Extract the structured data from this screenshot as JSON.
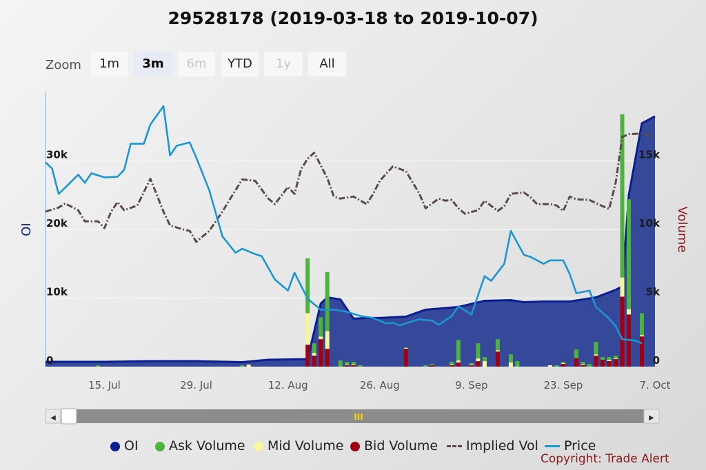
{
  "title": "29528178 (2019-03-18 to 2019-10-07)",
  "zoom": {
    "label": "Zoom",
    "buttons": [
      {
        "label": "1m",
        "state": "normal"
      },
      {
        "label": "3m",
        "state": "active"
      },
      {
        "label": "6m",
        "state": "disabled"
      },
      {
        "label": "YTD",
        "state": "normal"
      },
      {
        "label": "1y",
        "state": "disabled"
      },
      {
        "label": "All",
        "state": "normal"
      }
    ]
  },
  "navigator": {
    "handle_label": "III",
    "left_arrow": "◀",
    "right_arrow": "▶"
  },
  "legend": [
    {
      "label": "OI",
      "color": "#0a1f8f",
      "marker": "dot"
    },
    {
      "label": "Ask Volume",
      "color": "#4db33d",
      "marker": "dot"
    },
    {
      "label": "Mid Volume",
      "color": "#f6f69a",
      "marker": "dot"
    },
    {
      "label": "Bid Volume",
      "color": "#a00010",
      "marker": "dot"
    },
    {
      "label": "Implied Vol",
      "color": "#5a4a4e",
      "marker": "dash"
    },
    {
      "label": "Price",
      "color": "#1a96d2",
      "marker": "line"
    }
  ],
  "copyright": "Copyright: Trade Alert",
  "chart_data": {
    "type": "line",
    "x_range": [
      "2019-07-06",
      "2019-10-07"
    ],
    "x_ticks": [
      {
        "date": "2019-07-15",
        "label": "15. Jul"
      },
      {
        "date": "2019-07-29",
        "label": "29. Jul"
      },
      {
        "date": "2019-08-12",
        "label": "12. Aug"
      },
      {
        "date": "2019-08-26",
        "label": "26. Aug"
      },
      {
        "date": "2019-09-09",
        "label": "9. Sep"
      },
      {
        "date": "2019-09-23",
        "label": "23. Sep"
      },
      {
        "date": "2019-10-07",
        "label": "7. Oct"
      }
    ],
    "y_left": {
      "label": "OI",
      "min": 0,
      "max": 40000,
      "ticks": [
        {
          "v": 0,
          "label": "0"
        },
        {
          "v": 10000,
          "label": "10k"
        },
        {
          "v": 20000,
          "label": "20k"
        },
        {
          "v": 30000,
          "label": "30k"
        }
      ]
    },
    "y_right": {
      "label": "Volume",
      "min": 0,
      "max": 20000,
      "ticks": [
        {
          "v": 0,
          "label": "0"
        },
        {
          "v": 5000,
          "label": "5k"
        },
        {
          "v": 10000,
          "label": "10k"
        },
        {
          "v": 15000,
          "label": "15k"
        }
      ]
    },
    "grid": true,
    "legend_position": "bottom",
    "oi": [
      [
        "2019-07-06",
        700
      ],
      [
        "2019-07-15",
        700
      ],
      [
        "2019-07-22",
        800
      ],
      [
        "2019-07-29",
        800
      ],
      [
        "2019-08-05",
        650
      ],
      [
        "2019-08-09",
        1000
      ],
      [
        "2019-08-15",
        1100
      ],
      [
        "2019-08-17",
        9200
      ],
      [
        "2019-08-18",
        10100
      ],
      [
        "2019-08-20",
        9800
      ],
      [
        "2019-08-22",
        7000
      ],
      [
        "2019-08-24",
        7100
      ],
      [
        "2019-08-26",
        7100
      ],
      [
        "2019-08-30",
        7300
      ],
      [
        "2019-09-02",
        8300
      ],
      [
        "2019-09-07",
        8700
      ],
      [
        "2019-09-11",
        9600
      ],
      [
        "2019-09-15",
        9700
      ],
      [
        "2019-09-17",
        9400
      ],
      [
        "2019-09-20",
        9500
      ],
      [
        "2019-09-24",
        9500
      ],
      [
        "2019-09-28",
        10100
      ],
      [
        "2019-10-01",
        11200
      ],
      [
        "2019-10-02",
        11700
      ],
      [
        "2019-10-03",
        25000
      ],
      [
        "2019-10-05",
        35500
      ],
      [
        "2019-10-07",
        36500
      ]
    ],
    "price": [
      [
        "2019-07-06",
        29800
      ],
      [
        "2019-07-07",
        28900
      ],
      [
        "2019-07-08",
        25200
      ],
      [
        "2019-07-09",
        26100
      ],
      [
        "2019-07-11",
        28000
      ],
      [
        "2019-07-12",
        26800
      ],
      [
        "2019-07-13",
        28200
      ],
      [
        "2019-07-15",
        27600
      ],
      [
        "2019-07-17",
        27700
      ],
      [
        "2019-07-18",
        28700
      ],
      [
        "2019-07-19",
        32500
      ],
      [
        "2019-07-21",
        32500
      ],
      [
        "2019-07-22",
        35300
      ],
      [
        "2019-07-24",
        38000
      ],
      [
        "2019-07-25",
        30800
      ],
      [
        "2019-07-26",
        32200
      ],
      [
        "2019-07-28",
        32700
      ],
      [
        "2019-07-29",
        30500
      ],
      [
        "2019-07-31",
        25700
      ],
      [
        "2019-08-02",
        19000
      ],
      [
        "2019-08-04",
        16600
      ],
      [
        "2019-08-05",
        17200
      ],
      [
        "2019-08-07",
        16400
      ],
      [
        "2019-08-08",
        16100
      ],
      [
        "2019-08-10",
        12700
      ],
      [
        "2019-08-12",
        11100
      ],
      [
        "2019-08-13",
        13700
      ],
      [
        "2019-08-15",
        9900
      ],
      [
        "2019-08-17",
        8300
      ],
      [
        "2019-08-19",
        8300
      ],
      [
        "2019-08-21",
        8000
      ],
      [
        "2019-08-23",
        7400
      ],
      [
        "2019-08-25",
        7100
      ],
      [
        "2019-08-27",
        6300
      ],
      [
        "2019-08-28",
        6400
      ],
      [
        "2019-08-29",
        6000
      ],
      [
        "2019-08-31",
        6600
      ],
      [
        "2019-09-01",
        6900
      ],
      [
        "2019-09-03",
        6700
      ],
      [
        "2019-09-04",
        6100
      ],
      [
        "2019-09-06",
        7400
      ],
      [
        "2019-09-07",
        8800
      ],
      [
        "2019-09-09",
        7600
      ],
      [
        "2019-09-11",
        13200
      ],
      [
        "2019-09-12",
        12500
      ],
      [
        "2019-09-14",
        15000
      ],
      [
        "2019-09-15",
        19800
      ],
      [
        "2019-09-17",
        16300
      ],
      [
        "2019-09-18",
        16000
      ],
      [
        "2019-09-20",
        15000
      ],
      [
        "2019-09-21",
        15500
      ],
      [
        "2019-09-23",
        15500
      ],
      [
        "2019-09-24",
        13500
      ],
      [
        "2019-09-25",
        10700
      ],
      [
        "2019-09-27",
        11100
      ],
      [
        "2019-09-28",
        8700
      ],
      [
        "2019-09-30",
        7000
      ],
      [
        "2019-10-01",
        5900
      ],
      [
        "2019-10-02",
        4000
      ],
      [
        "2019-10-04",
        3800
      ],
      [
        "2019-10-05",
        3400
      ]
    ],
    "implied_vol": [
      [
        "2019-07-06",
        22600
      ],
      [
        "2019-07-08",
        23200
      ],
      [
        "2019-07-09",
        23800
      ],
      [
        "2019-07-11",
        22800
      ],
      [
        "2019-07-12",
        21200
      ],
      [
        "2019-07-14",
        21200
      ],
      [
        "2019-07-15",
        20200
      ],
      [
        "2019-07-16",
        22600
      ],
      [
        "2019-07-17",
        24000
      ],
      [
        "2019-07-18",
        22800
      ],
      [
        "2019-07-20",
        23500
      ],
      [
        "2019-07-22",
        27400
      ],
      [
        "2019-07-24",
        22600
      ],
      [
        "2019-07-25",
        20600
      ],
      [
        "2019-07-27",
        20000
      ],
      [
        "2019-07-28",
        19800
      ],
      [
        "2019-07-29",
        18200
      ],
      [
        "2019-07-31",
        19800
      ],
      [
        "2019-08-02",
        22600
      ],
      [
        "2019-08-03",
        24200
      ],
      [
        "2019-08-05",
        27300
      ],
      [
        "2019-08-07",
        27100
      ],
      [
        "2019-08-09",
        24500
      ],
      [
        "2019-08-10",
        23700
      ],
      [
        "2019-08-12",
        26200
      ],
      [
        "2019-08-13",
        25200
      ],
      [
        "2019-08-14",
        28800
      ],
      [
        "2019-08-15",
        30300
      ],
      [
        "2019-08-16",
        31200
      ],
      [
        "2019-08-18",
        27500
      ],
      [
        "2019-08-19",
        24800
      ],
      [
        "2019-08-20",
        24500
      ],
      [
        "2019-08-22",
        24800
      ],
      [
        "2019-08-24",
        23700
      ],
      [
        "2019-08-25",
        25200
      ],
      [
        "2019-08-26",
        27100
      ],
      [
        "2019-08-28",
        29200
      ],
      [
        "2019-08-30",
        28500
      ],
      [
        "2019-09-01",
        25300
      ],
      [
        "2019-09-02",
        23100
      ],
      [
        "2019-09-04",
        24500
      ],
      [
        "2019-09-05",
        24200
      ],
      [
        "2019-09-06",
        24300
      ],
      [
        "2019-09-07",
        23100
      ],
      [
        "2019-09-08",
        22300
      ],
      [
        "2019-09-10",
        22800
      ],
      [
        "2019-09-11",
        24200
      ],
      [
        "2019-09-13",
        22700
      ],
      [
        "2019-09-14",
        23400
      ],
      [
        "2019-09-15",
        25200
      ],
      [
        "2019-09-17",
        25400
      ],
      [
        "2019-09-18",
        24700
      ],
      [
        "2019-09-19",
        23700
      ],
      [
        "2019-09-21",
        23700
      ],
      [
        "2019-09-22",
        23500
      ],
      [
        "2019-09-23",
        22700
      ],
      [
        "2019-09-24",
        24800
      ],
      [
        "2019-09-25",
        24400
      ],
      [
        "2019-09-27",
        24300
      ],
      [
        "2019-09-29",
        23400
      ],
      [
        "2019-09-30",
        23000
      ],
      [
        "2019-10-01",
        26800
      ],
      [
        "2019-10-02",
        33500
      ],
      [
        "2019-10-03",
        33900
      ],
      [
        "2019-10-05",
        34000
      ],
      [
        "2019-10-07",
        33400
      ]
    ],
    "volume_bars": [
      {
        "x": "2019-07-14",
        "ask": 100,
        "mid": 0,
        "bid": 0
      },
      {
        "x": "2019-08-05",
        "ask": 100,
        "mid": 0,
        "bid": 0
      },
      {
        "x": "2019-08-06",
        "ask": 0,
        "mid": 150,
        "bid": 0
      },
      {
        "x": "2019-08-15",
        "ask": 4000,
        "mid": 2300,
        "bid": 1600
      },
      {
        "x": "2019-08-16",
        "ask": 700,
        "mid": 200,
        "bid": 800
      },
      {
        "x": "2019-08-17",
        "ask": 1400,
        "mid": 200,
        "bid": 2000
      },
      {
        "x": "2019-08-18",
        "ask": 4300,
        "mid": 1300,
        "bid": 1300
      },
      {
        "x": "2019-08-20",
        "ask": 450,
        "mid": 0,
        "bid": 0
      },
      {
        "x": "2019-08-21",
        "ask": 200,
        "mid": 50,
        "bid": 100
      },
      {
        "x": "2019-08-22",
        "ask": 200,
        "mid": 50,
        "bid": 100
      },
      {
        "x": "2019-08-23",
        "ask": 100,
        "mid": 0,
        "bid": 0
      },
      {
        "x": "2019-08-30",
        "ask": 50,
        "mid": 50,
        "bid": 1300
      },
      {
        "x": "2019-09-02",
        "ask": 100,
        "mid": 0,
        "bid": 0
      },
      {
        "x": "2019-09-03",
        "ask": 100,
        "mid": 0,
        "bid": 100
      },
      {
        "x": "2019-09-06",
        "ask": 200,
        "mid": 50,
        "bid": 100
      },
      {
        "x": "2019-09-07",
        "ask": 1500,
        "mid": 150,
        "bid": 300
      },
      {
        "x": "2019-09-09",
        "ask": 100,
        "mid": 50,
        "bid": 100
      },
      {
        "x": "2019-09-10",
        "ask": 1100,
        "mid": 200,
        "bid": 400
      },
      {
        "x": "2019-09-11",
        "ask": 300,
        "mid": 400,
        "bid": 0
      },
      {
        "x": "2019-09-13",
        "ask": 800,
        "mid": 100,
        "bid": 1100
      },
      {
        "x": "2019-09-15",
        "ask": 600,
        "mid": 300,
        "bid": 0
      },
      {
        "x": "2019-09-16",
        "ask": 400,
        "mid": 0,
        "bid": 0
      },
      {
        "x": "2019-09-21",
        "ask": 0,
        "mid": 100,
        "bid": 0
      },
      {
        "x": "2019-09-22",
        "ask": 100,
        "mid": 0,
        "bid": 0
      },
      {
        "x": "2019-09-23",
        "ask": 100,
        "mid": 50,
        "bid": 200
      },
      {
        "x": "2019-09-25",
        "ask": 650,
        "mid": 0,
        "bid": 600
      },
      {
        "x": "2019-09-26",
        "ask": 200,
        "mid": 50,
        "bid": 100
      },
      {
        "x": "2019-09-27",
        "ask": 200,
        "mid": 0,
        "bid": 0
      },
      {
        "x": "2019-09-28",
        "ask": 900,
        "mid": 100,
        "bid": 800
      },
      {
        "x": "2019-09-29",
        "ask": 200,
        "mid": 0,
        "bid": 500
      },
      {
        "x": "2019-09-30",
        "ask": 200,
        "mid": 100,
        "bid": 400
      },
      {
        "x": "2019-10-01",
        "ask": 200,
        "mid": 50,
        "bid": 550
      },
      {
        "x": "2019-10-02",
        "ask": 11900,
        "mid": 1400,
        "bid": 5100
      },
      {
        "x": "2019-10-03",
        "ask": 8000,
        "mid": 400,
        "bid": 3800
      },
      {
        "x": "2019-10-05",
        "ask": 1600,
        "mid": 100,
        "bid": 2200
      }
    ]
  }
}
